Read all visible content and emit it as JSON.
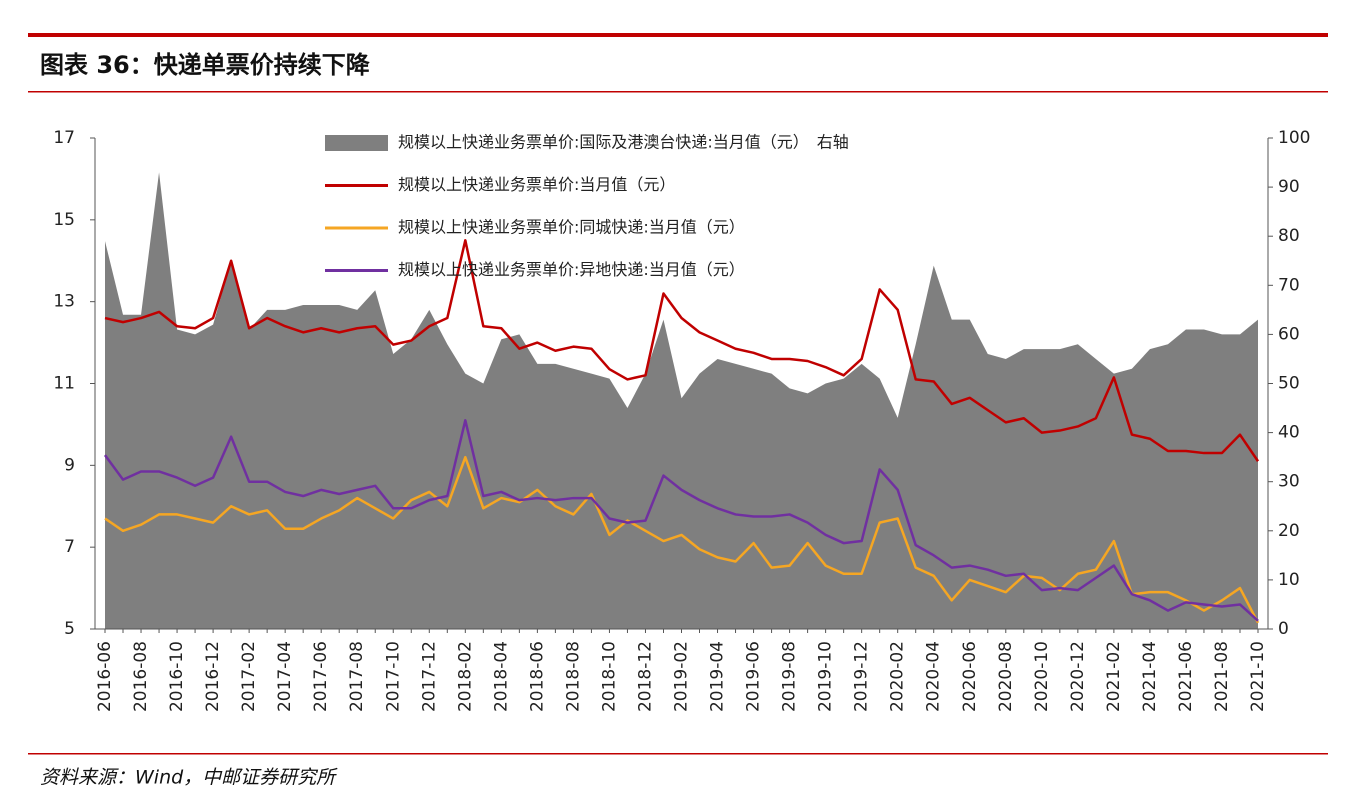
{
  "header": {
    "title": "图表 36：快递单票价持续下降"
  },
  "footer": {
    "source": "资料来源：Wind，中邮证券研究所"
  },
  "chart_data": {
    "type": "line",
    "categories": [
      "2016-06",
      null,
      "2016-08",
      null,
      "2016-10",
      null,
      "2016-12",
      null,
      "2017-02",
      null,
      "2017-04",
      null,
      "2017-06",
      null,
      "2017-08",
      null,
      "2017-10",
      null,
      "2017-12",
      null,
      "2018-02",
      null,
      "2018-04",
      null,
      "2018-06",
      null,
      "2018-08",
      null,
      "2018-10",
      null,
      "2018-12",
      null,
      "2019-02",
      null,
      "2019-04",
      null,
      "2019-06",
      null,
      "2019-08",
      null,
      "2019-10",
      null,
      "2019-12",
      null,
      "2020-02",
      null,
      "2020-04",
      null,
      "2020-06",
      null,
      "2020-08",
      null,
      "2020-10",
      null,
      "2020-12",
      null,
      "2021-02",
      null,
      "2021-04",
      null,
      "2021-06",
      null,
      "2021-08",
      null,
      "2021-10"
    ],
    "series": [
      {
        "name": "规模以上快递业务票单价:国际及港澳台快递:当月值（元）　右轴",
        "type": "area",
        "axis": "y2",
        "color": "#7f7f7f",
        "values": [
          79,
          64,
          64,
          93,
          61,
          60,
          62,
          75,
          61,
          65,
          65,
          66,
          66,
          66,
          65,
          69,
          56,
          59,
          65,
          58,
          52,
          50,
          59,
          60,
          54,
          54,
          53,
          52,
          51,
          45,
          52,
          63,
          47,
          52,
          55,
          54,
          53,
          52,
          49,
          48,
          50,
          51,
          54,
          51,
          43,
          58,
          74,
          63,
          63,
          56,
          55,
          57,
          57,
          57,
          58,
          55,
          52,
          53,
          57,
          58,
          61,
          61,
          60,
          60,
          63
        ]
      },
      {
        "name": "规模以上快递业务票单价:当月值（元）",
        "type": "line",
        "color": "#c00000",
        "values": [
          12.6,
          12.5,
          12.6,
          12.75,
          12.4,
          12.35,
          12.6,
          14.0,
          12.35,
          12.6,
          12.4,
          12.25,
          12.35,
          12.25,
          12.35,
          12.4,
          11.95,
          12.05,
          12.4,
          12.6,
          14.5,
          12.4,
          12.35,
          11.85,
          12.0,
          11.8,
          11.9,
          11.85,
          11.35,
          11.1,
          11.2,
          13.2,
          12.6,
          12.25,
          12.05,
          11.85,
          11.75,
          11.6,
          11.6,
          11.55,
          11.4,
          11.2,
          11.6,
          13.3,
          12.8,
          11.1,
          11.05,
          10.5,
          10.65,
          10.35,
          10.05,
          10.15,
          9.8,
          9.85,
          9.95,
          10.15,
          11.15,
          9.75,
          9.65,
          9.35,
          9.35,
          9.3,
          9.3,
          9.75,
          9.1
        ]
      },
      {
        "name": "规模以上快递业务票单价:同城快递:当月值（元）",
        "type": "line",
        "color": "#f5a623",
        "values": [
          7.7,
          7.4,
          7.55,
          7.8,
          7.8,
          7.7,
          7.6,
          8.0,
          7.8,
          7.9,
          7.45,
          7.45,
          7.7,
          7.9,
          8.2,
          7.95,
          7.7,
          8.15,
          8.35,
          8.0,
          9.2,
          7.95,
          8.2,
          8.1,
          8.4,
          8.0,
          7.8,
          8.3,
          7.3,
          7.65,
          7.4,
          7.15,
          7.3,
          6.95,
          6.75,
          6.65,
          7.1,
          6.5,
          6.55,
          7.1,
          6.55,
          6.35,
          6.35,
          7.6,
          7.7,
          6.5,
          6.3,
          5.7,
          6.2,
          6.05,
          5.9,
          6.3,
          6.25,
          5.95,
          6.35,
          6.45,
          7.15,
          5.85,
          5.9,
          5.9,
          5.7,
          5.45,
          5.7,
          6.0,
          5.15
        ]
      },
      {
        "name": "规模以上快递业务票单价:异地快递:当月值（元）",
        "type": "line",
        "color": "#7030a0",
        "values": [
          9.25,
          8.65,
          8.85,
          8.85,
          8.7,
          8.5,
          8.7,
          9.7,
          8.6,
          8.6,
          8.35,
          8.25,
          8.4,
          8.3,
          8.4,
          8.5,
          7.95,
          7.95,
          8.15,
          8.25,
          10.1,
          8.25,
          8.35,
          8.15,
          8.2,
          8.15,
          8.2,
          8.2,
          7.7,
          7.6,
          7.65,
          8.75,
          8.4,
          8.15,
          7.95,
          7.8,
          7.75,
          7.75,
          7.8,
          7.6,
          7.3,
          7.1,
          7.15,
          8.9,
          8.4,
          7.05,
          6.8,
          6.5,
          6.55,
          6.45,
          6.3,
          6.35,
          5.95,
          6.0,
          5.95,
          6.25,
          6.55,
          5.85,
          5.7,
          5.45,
          5.65,
          5.6,
          5.55,
          5.6,
          5.2
        ]
      }
    ],
    "ylim": [
      5,
      17
    ],
    "yticks": [
      5,
      7,
      9,
      11,
      13,
      15,
      17
    ],
    "y2lim": [
      0,
      100
    ],
    "y2ticks": [
      0,
      10,
      20,
      30,
      40,
      50,
      60,
      70,
      80,
      90,
      100
    ],
    "legend": "top"
  }
}
